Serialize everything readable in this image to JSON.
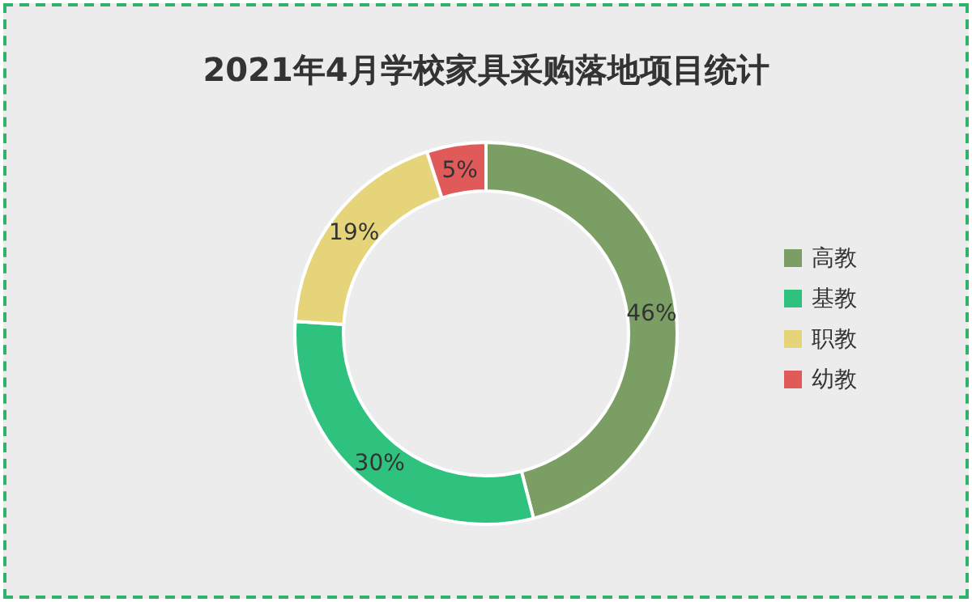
{
  "chart_data": {
    "type": "donut",
    "title": "2021年4月学校家具采购落地项目统计",
    "categories": [
      "高教",
      "基教",
      "职教",
      "幼教"
    ],
    "values": [
      46,
      30,
      19,
      5
    ],
    "value_labels": [
      "46%",
      "30%",
      "19%",
      "5%"
    ],
    "colors": [
      "#7a9e63",
      "#2ec27e",
      "#e6d47a",
      "#e05a5a"
    ],
    "legend": "right"
  }
}
